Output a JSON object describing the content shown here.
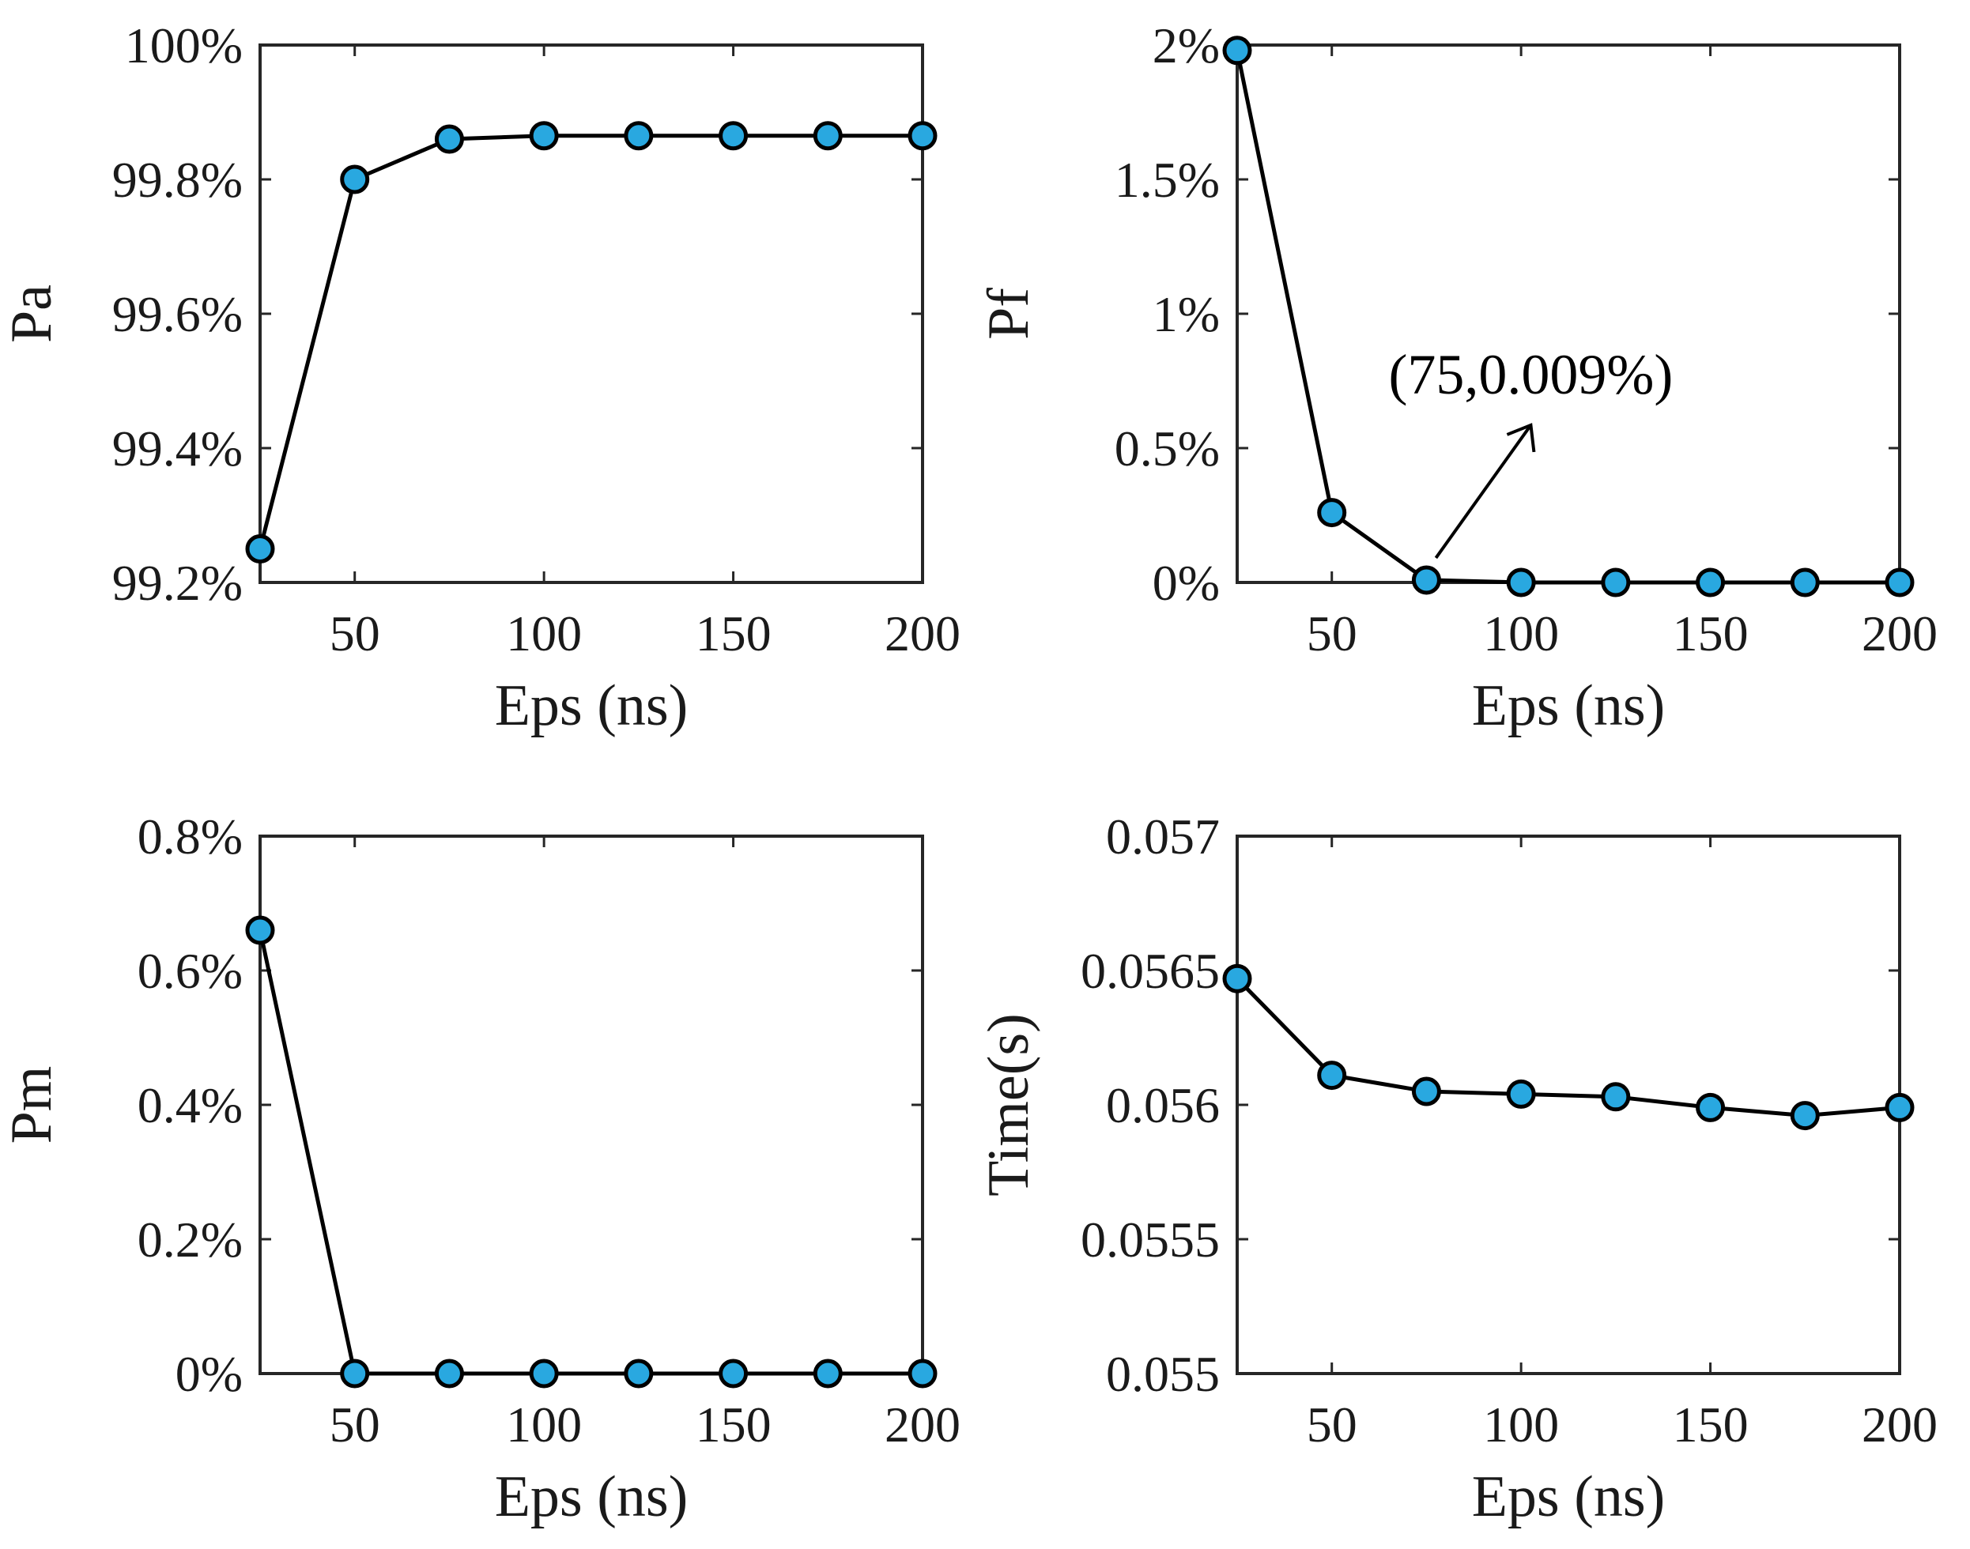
{
  "figure": {
    "colors": {
      "marker_fill": "#29a8e0",
      "line": "#000000",
      "axis": "#262626"
    },
    "panels": [
      {
        "id": "pa",
        "ylabel": "Pa",
        "xlabel": "Eps (ns)"
      },
      {
        "id": "pf",
        "ylabel": "Pf",
        "xlabel": "Eps (ns)"
      },
      {
        "id": "pm",
        "ylabel": "Pm",
        "xlabel": "Eps (ns)"
      },
      {
        "id": "time",
        "ylabel": "Time(s)",
        "xlabel": "Eps (ns)"
      }
    ]
  },
  "chart_data": [
    {
      "type": "line",
      "title": "",
      "xlabel": "Eps (ns)",
      "ylabel": "Pa",
      "x": [
        25,
        50,
        75,
        100,
        125,
        150,
        175,
        200
      ],
      "y": [
        99.25,
        99.8,
        99.86,
        99.865,
        99.865,
        99.865,
        99.865,
        99.865
      ],
      "xlim": [
        25,
        200
      ],
      "ylim": [
        99.2,
        100
      ],
      "xticks": [
        50,
        100,
        150,
        200
      ],
      "xtick_labels": [
        "50",
        "100",
        "150",
        "200"
      ],
      "yticks": [
        99.2,
        99.4,
        99.6,
        99.8,
        100
      ],
      "ytick_labels": [
        "99.2%",
        "99.4%",
        "99.6%",
        "99.8%",
        "100%"
      ],
      "grid": false
    },
    {
      "type": "line",
      "title": "",
      "xlabel": "Eps (ns)",
      "ylabel": "Pf",
      "x": [
        25,
        50,
        75,
        100,
        125,
        150,
        175,
        200
      ],
      "y": [
        1.98,
        0.26,
        0.009,
        0.0,
        0.0,
        0.0,
        0.0,
        0.0
      ],
      "xlim": [
        25,
        200
      ],
      "ylim": [
        0,
        2
      ],
      "xticks": [
        50,
        100,
        150,
        200
      ],
      "xtick_labels": [
        "50",
        "100",
        "150",
        "200"
      ],
      "yticks": [
        0,
        0.5,
        1,
        1.5,
        2
      ],
      "ytick_labels": [
        "0%",
        "0.5%",
        "1%",
        "1.5%",
        "2%"
      ],
      "grid": false,
      "annotation": {
        "text": "(75,0.009%)",
        "x": 75,
        "y": 0.009
      }
    },
    {
      "type": "line",
      "title": "",
      "xlabel": "Eps (ns)",
      "ylabel": "Pm",
      "x": [
        25,
        50,
        75,
        100,
        125,
        150,
        175,
        200
      ],
      "y": [
        0.66,
        0.0,
        0.0,
        0.0,
        0.0,
        0.0,
        0.0,
        0.0
      ],
      "xlim": [
        25,
        200
      ],
      "ylim": [
        0,
        0.8
      ],
      "xticks": [
        50,
        100,
        150,
        200
      ],
      "xtick_labels": [
        "50",
        "100",
        "150",
        "200"
      ],
      "yticks": [
        0,
        0.2,
        0.4,
        0.6,
        0.8
      ],
      "ytick_labels": [
        "0%",
        "0.2%",
        "0.4%",
        "0.6%",
        "0.8%"
      ],
      "grid": false
    },
    {
      "type": "line",
      "title": "",
      "xlabel": "Eps (ns)",
      "ylabel": "Time(s)",
      "x": [
        25,
        50,
        75,
        100,
        125,
        150,
        175,
        200
      ],
      "y": [
        0.05647,
        0.05611,
        0.05605,
        0.05604,
        0.05603,
        0.05599,
        0.05596,
        0.05599
      ],
      "xlim": [
        25,
        200
      ],
      "ylim": [
        0.055,
        0.057
      ],
      "xticks": [
        50,
        100,
        150,
        200
      ],
      "xtick_labels": [
        "50",
        "100",
        "150",
        "200"
      ],
      "yticks": [
        0.055,
        0.0555,
        0.056,
        0.0565,
        0.057
      ],
      "ytick_labels": [
        "0.055",
        "0.0555",
        "0.056",
        "0.0565",
        "0.057"
      ],
      "grid": false
    }
  ]
}
